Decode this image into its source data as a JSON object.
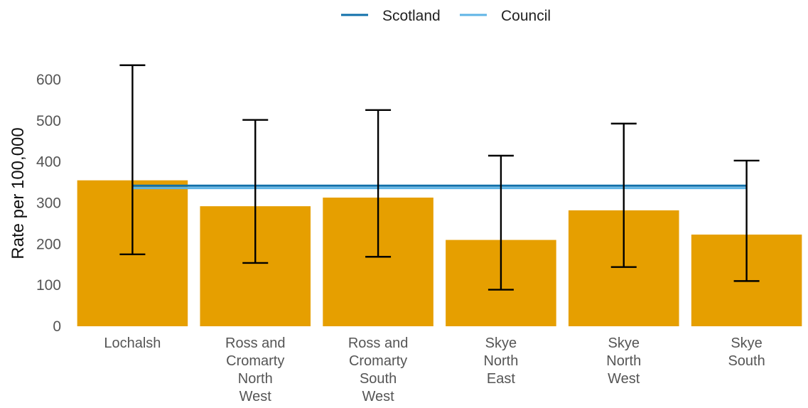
{
  "chart_data": {
    "type": "bar",
    "title": "",
    "xlabel": "",
    "ylabel": "Rate per 100,000",
    "ylim": [
      0,
      650
    ],
    "yticks": [
      0,
      100,
      200,
      300,
      400,
      500,
      600
    ],
    "grid": false,
    "legend_position": "top",
    "categories": [
      "Lochalsh",
      "Ross and Cromarty North West",
      "Ross and Cromarty South West",
      "Skye North East",
      "Skye North West",
      "Skye South"
    ],
    "category_lines": [
      [
        "Lochalsh"
      ],
      [
        "Ross and",
        "Cromarty",
        "North",
        "West"
      ],
      [
        "Ross and",
        "Cromarty",
        "South",
        "West"
      ],
      [
        "Skye",
        "North",
        "East"
      ],
      [
        "Skye",
        "North",
        "West"
      ],
      [
        "Skye",
        "South"
      ]
    ],
    "values": [
      355,
      292,
      313,
      210,
      282,
      223
    ],
    "error_lower": [
      175,
      154,
      169,
      89,
      144,
      110
    ],
    "error_upper": [
      635,
      502,
      526,
      415,
      493,
      403
    ],
    "bar_color": "#E69F00",
    "reference_lines": [
      {
        "name": "Scotland",
        "value": 342,
        "color": "#1170AA"
      },
      {
        "name": "Council",
        "value": 336,
        "color": "#5FB4E6"
      }
    ]
  }
}
